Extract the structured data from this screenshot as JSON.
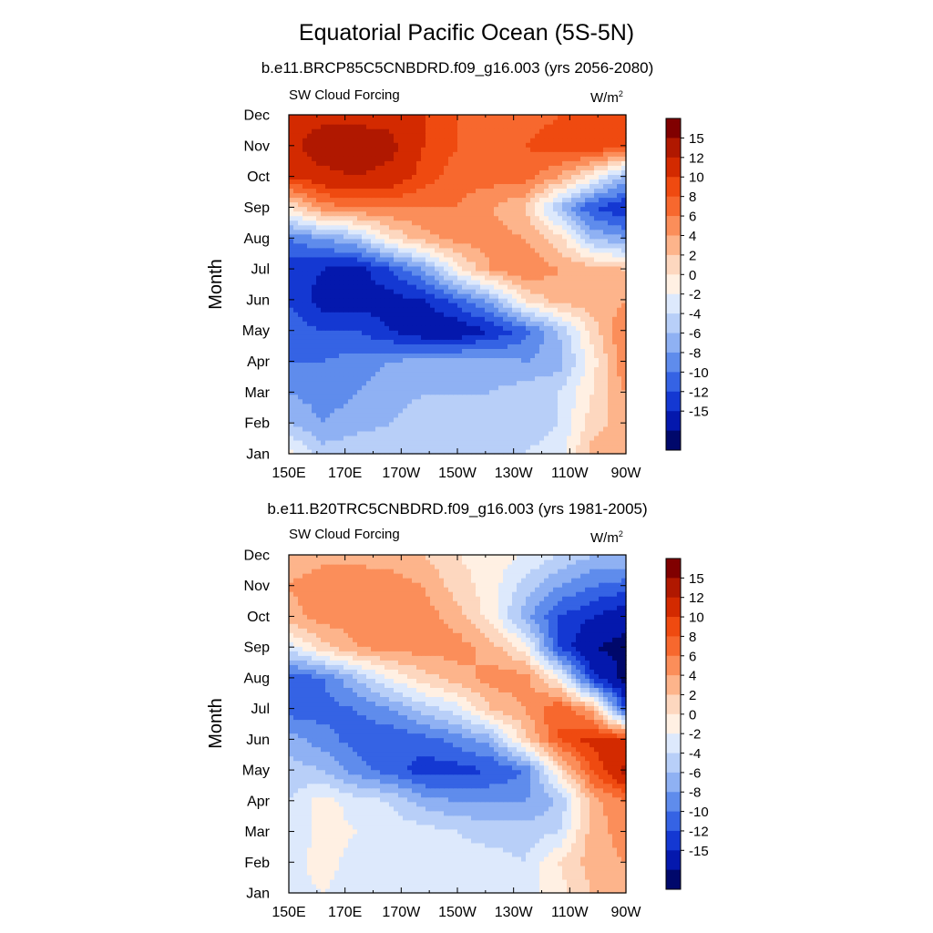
{
  "title": "Equatorial Pacific Ocean (5S-5N)",
  "colorbar": {
    "labels": [
      "15",
      "12",
      "10",
      "8",
      "6",
      "4",
      "2",
      "0",
      "-2",
      "-4",
      "-6",
      "-8",
      "-10",
      "-12",
      "-15"
    ],
    "colors": [
      "#800000",
      "#b01800",
      "#d32a00",
      "#ef4a10",
      "#f7682e",
      "#fb8e5a",
      "#fdb48b",
      "#fdd7bf",
      "#fff0e3",
      "#dde9fc",
      "#b8cff8",
      "#8fb1f3",
      "#5f8cec",
      "#3563e4",
      "#1438d2",
      "#0418ad",
      "#00086b"
    ]
  },
  "panels": [
    {
      "title": "b.e11.BRCP85C5CNBDRD.f09_g16.003 (yrs 2056-2080)",
      "left_label": "SW Cloud Forcing",
      "units": "W/m",
      "units_sup": "2"
    },
    {
      "title": "b.e11.B20TRC5CNBDRD.f09_g16.003 (yrs 1981-2005)",
      "left_label": "SW Cloud Forcing",
      "units": "W/m",
      "units_sup": "2"
    }
  ],
  "chart_data": [
    {
      "type": "heatmap",
      "title": "b.e11.BRCP85C5CNBDRD.f09_g16.003 (yrs 2056-2080)",
      "variable": "SW Cloud Forcing",
      "units": "W/m2",
      "ylabel": "Month",
      "x_ticks": [
        "150E",
        "170E",
        "170W",
        "150W",
        "130W",
        "110W",
        "90W"
      ],
      "y_ticks": [
        "Jan",
        "Feb",
        "Mar",
        "Apr",
        "May",
        "Jun",
        "Jul",
        "Aug",
        "Sep",
        "Oct",
        "Nov",
        "Dec"
      ],
      "x_degE": [
        150,
        170,
        190,
        210,
        230,
        250,
        270
      ],
      "z": [
        [
          1,
          -3,
          -2,
          -2,
          -2,
          -2,
          -2,
          -2,
          -1,
          5,
          5
        ],
        [
          -4,
          -6,
          -5,
          -4,
          -3,
          -4,
          -3,
          -3,
          -2,
          3,
          5
        ],
        [
          -6,
          -7,
          -6,
          -5,
          -4,
          -4,
          -4,
          -3,
          -2,
          2,
          6
        ],
        [
          -8,
          -8,
          -7,
          -6,
          -5,
          -5,
          -5,
          -6,
          -5,
          1,
          8
        ],
        [
          -9,
          -10,
          -10,
          -12,
          -14,
          -14,
          -12,
          -9,
          -4,
          3,
          8
        ],
        [
          -10,
          -13,
          -13,
          -13,
          -12,
          -9,
          -5,
          2,
          5,
          5,
          6
        ],
        [
          -11,
          -12,
          -13,
          -10,
          -6,
          1,
          6,
          8,
          6,
          5,
          4
        ],
        [
          -8,
          -6,
          -4,
          2,
          5,
          7,
          7,
          6,
          3,
          -4,
          -6
        ],
        [
          2,
          7,
          8,
          8,
          8,
          8,
          6,
          4,
          -4,
          -10,
          -12
        ],
        [
          12,
          14,
          15,
          14,
          11,
          9,
          9,
          9,
          6,
          1,
          -5
        ],
        [
          14,
          17,
          17,
          16,
          12,
          10,
          9,
          10,
          11,
          12,
          10
        ],
        [
          13,
          14,
          14,
          14,
          12,
          10,
          9,
          9,
          10,
          11,
          12
        ]
      ]
    },
    {
      "type": "heatmap",
      "title": "b.e11.B20TRC5CNBDRD.f09_g16.003 (yrs 1981-2005)",
      "variable": "SW Cloud Forcing",
      "units": "W/m2",
      "ylabel": "Month",
      "x_ticks": [
        "150E",
        "170E",
        "170W",
        "150W",
        "130W",
        "110W",
        "90W"
      ],
      "y_ticks": [
        "Jan",
        "Feb",
        "Mar",
        "Apr",
        "May",
        "Jun",
        "Jul",
        "Aug",
        "Sep",
        "Oct",
        "Nov",
        "Dec"
      ],
      "x_degE": [
        150,
        170,
        190,
        210,
        230,
        250,
        270
      ],
      "z": [
        [
          -1,
          0,
          -1,
          -1,
          -1,
          -1,
          -1,
          -1,
          1,
          4,
          5
        ],
        [
          -1,
          1,
          -1,
          -1,
          -1,
          -1,
          -1,
          -2,
          2,
          5,
          6
        ],
        [
          -2,
          1,
          0,
          -1,
          -1,
          -2,
          -3,
          -3,
          -2,
          5,
          7
        ],
        [
          -2,
          1,
          -1,
          -2,
          -5,
          -6,
          -6,
          -6,
          -4,
          5,
          8
        ],
        [
          -3,
          -4,
          -7,
          -9,
          -11,
          -11,
          -10,
          -8,
          2,
          10,
          16
        ],
        [
          -5,
          -7,
          -9,
          -10,
          -9,
          -7,
          -5,
          3,
          10,
          13,
          12
        ],
        [
          -9,
          -9,
          -8,
          -6,
          -3,
          -1,
          4,
          6,
          10,
          5,
          -10
        ],
        [
          -10,
          -8,
          -4,
          0,
          3,
          5,
          7,
          7,
          1,
          -11,
          -16
        ],
        [
          -1,
          3,
          6,
          7,
          7,
          7,
          5,
          1,
          -10,
          -15,
          -16
        ],
        [
          5,
          7,
          7,
          7,
          7,
          5,
          1,
          -5,
          -10,
          -12,
          -14
        ],
        [
          6,
          8,
          8,
          7,
          6,
          3,
          1,
          -3,
          -6,
          -8,
          -9
        ],
        [
          4,
          5,
          5,
          5,
          4,
          2,
          1,
          0,
          -2,
          -4,
          -4
        ]
      ]
    }
  ]
}
